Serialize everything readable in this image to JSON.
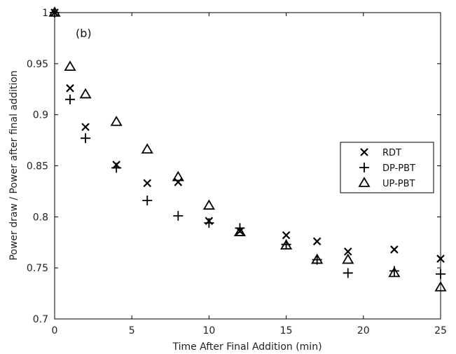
{
  "chart_data": {
    "type": "scatter",
    "panel_label": "(b)",
    "title": "",
    "xlabel": "Time After Final Addition (min)",
    "ylabel": "Power draw / Power after final addition",
    "xlim": [
      0,
      25
    ],
    "ylim": [
      0.7,
      1.0
    ],
    "xticks": [
      0,
      5,
      10,
      15,
      20,
      25
    ],
    "yticks": [
      0.7,
      0.75,
      0.8,
      0.85,
      0.9,
      0.95,
      1
    ],
    "xtick_labels": [
      "0",
      "5",
      "10",
      "15",
      "20",
      "25"
    ],
    "ytick_labels": [
      "0.7",
      "0.75",
      "0.8",
      "0.85",
      "0.9",
      "0.95",
      "1"
    ],
    "grid": false,
    "legend_position": "right",
    "series": [
      {
        "name": "RDT",
        "marker": "x",
        "color": "#000000",
        "x": [
          0,
          1,
          2,
          4,
          6,
          8,
          10,
          12,
          15,
          17,
          19,
          22,
          25
        ],
        "y": [
          1.0,
          0.926,
          0.888,
          0.851,
          0.833,
          0.834,
          0.796,
          0.786,
          0.782,
          0.776,
          0.766,
          0.768,
          0.759
        ]
      },
      {
        "name": "DP-PBT",
        "marker": "plus",
        "color": "#000000",
        "x": [
          0,
          1,
          2,
          4,
          6,
          8,
          10,
          12,
          15,
          17,
          19,
          22,
          25
        ],
        "y": [
          1.0,
          0.915,
          0.877,
          0.848,
          0.816,
          0.801,
          0.794,
          0.789,
          0.773,
          0.758,
          0.745,
          0.747,
          0.744
        ]
      },
      {
        "name": "UP-PBT",
        "marker": "triangle",
        "color": "#000000",
        "x": [
          0,
          1,
          2,
          4,
          6,
          8,
          10,
          12,
          15,
          17,
          19,
          22,
          25
        ],
        "y": [
          1.0,
          0.947,
          0.92,
          0.893,
          0.866,
          0.839,
          0.811,
          0.785,
          0.772,
          0.758,
          0.758,
          0.745,
          0.731
        ]
      }
    ]
  }
}
